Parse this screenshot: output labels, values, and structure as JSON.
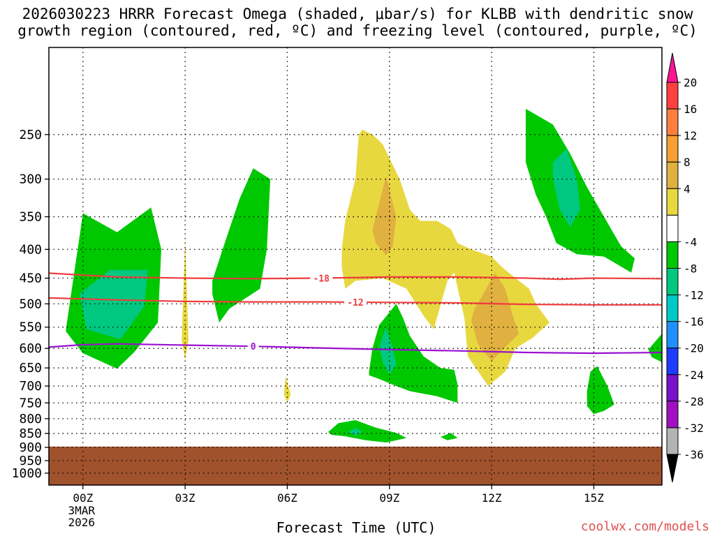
{
  "title": {
    "line1": "2026030223 HRRR Forecast Omega (shaded, μbar/s) for KLBB with dendritic snow",
    "line2": "growth region (contoured, red, ºC) and freezing level (contoured, purple, ºC)"
  },
  "xlabel": "Forecast Time (UTC)",
  "credit": "coolwx.com/models",
  "chart_data": {
    "type": "time-height cross-section (filled contour)",
    "x_unit": "forecast hours since 2026-03-03 00Z",
    "xlim": [
      -1.0,
      17.0
    ],
    "x_ticks": [
      {
        "hour": 0,
        "label": "00Z",
        "sublabels": [
          "3MAR",
          "2026"
        ]
      },
      {
        "hour": 3,
        "label": "03Z",
        "sublabels": []
      },
      {
        "hour": 6,
        "label": "06Z",
        "sublabels": []
      },
      {
        "hour": 9,
        "label": "09Z",
        "sublabels": []
      },
      {
        "hour": 12,
        "label": "12Z",
        "sublabels": []
      },
      {
        "hour": 15,
        "label": "15Z",
        "sublabels": []
      }
    ],
    "y_unit": "hPa",
    "ylim": [
      1050,
      175
    ],
    "y_ticks": [
      250,
      300,
      350,
      400,
      450,
      500,
      550,
      600,
      650,
      700,
      750,
      800,
      850,
      900,
      950,
      1000
    ],
    "ground_below_hPa": 897,
    "ground_color": "#a0522d",
    "colorbar": {
      "label_values": [
        20,
        16,
        12,
        8,
        4,
        -4,
        -8,
        -12,
        -16,
        -20,
        -24,
        -28,
        -32,
        -36
      ],
      "bands": [
        {
          "from": 20,
          "to": 24,
          "color": "#ff1493"
        },
        {
          "from": 16,
          "to": 20,
          "color": "#ff4040"
        },
        {
          "from": 12,
          "to": 16,
          "color": "#ff7f3f"
        },
        {
          "from": 8,
          "to": 12,
          "color": "#f5a030"
        },
        {
          "from": 4,
          "to": 8,
          "color": "#e0b040"
        },
        {
          "from": 0,
          "to": 4,
          "color": "#e8d840"
        },
        {
          "from": -4,
          "to": 0,
          "color": "#ffffff"
        },
        {
          "from": -8,
          "to": -4,
          "color": "#00c800"
        },
        {
          "from": -12,
          "to": -8,
          "color": "#00c880"
        },
        {
          "from": -16,
          "to": -12,
          "color": "#00c8c8"
        },
        {
          "from": -20,
          "to": -16,
          "color": "#1e90ff"
        },
        {
          "from": -24,
          "to": -20,
          "color": "#1e3cff"
        },
        {
          "from": -28,
          "to": -24,
          "color": "#7a10c8"
        },
        {
          "from": -32,
          "to": -28,
          "color": "#a010c0"
        },
        {
          "from": -36,
          "to": -32,
          "color": "#b4b4b4"
        },
        {
          "from": -40,
          "to": -36,
          "color": "#000000"
        }
      ]
    },
    "shaded_regions": [
      {
        "value_band": [
          -8,
          -4
        ],
        "color": "#00c800",
        "points": [
          [
            -0.5,
            555
          ],
          [
            0.0,
            345
          ],
          [
            1.0,
            373
          ],
          [
            2.0,
            337
          ],
          [
            2.3,
            400
          ],
          [
            2.2,
            540
          ],
          [
            1.5,
            610
          ],
          [
            1.0,
            652
          ],
          [
            0.0,
            612
          ],
          [
            -0.5,
            560
          ]
        ]
      },
      {
        "value_band": [
          -12,
          -8
        ],
        "color": "#00c880",
        "points": [
          [
            -0.1,
            480
          ],
          [
            0.8,
            435
          ],
          [
            1.9,
            435
          ],
          [
            1.8,
            505
          ],
          [
            1.1,
            578
          ],
          [
            0.1,
            555
          ]
        ]
      },
      {
        "value_band": [
          0,
          4
        ],
        "color": "#e8d840",
        "points": [
          [
            2.9,
            580
          ],
          [
            3.0,
            385
          ],
          [
            3.1,
            580
          ],
          [
            3.0,
            628
          ],
          [
            2.9,
            580
          ]
        ]
      },
      {
        "value_band": [
          -8,
          -4
        ],
        "color": "#00c800",
        "points": [
          [
            3.8,
            455
          ],
          [
            4.1,
            400
          ],
          [
            4.6,
            325
          ],
          [
            5.0,
            287
          ],
          [
            5.5,
            300
          ],
          [
            5.4,
            400
          ],
          [
            5.2,
            470
          ],
          [
            4.3,
            510
          ],
          [
            4.0,
            540
          ],
          [
            3.8,
            480
          ]
        ]
      },
      {
        "value_band": [
          0,
          4
        ],
        "color": "#e8d840",
        "points": [
          [
            5.9,
            725
          ],
          [
            5.95,
            672
          ],
          [
            6.1,
            725
          ],
          [
            6.0,
            750
          ],
          [
            5.9,
            725
          ]
        ]
      },
      {
        "value_band": [
          0,
          4
        ],
        "color": "#e8d840",
        "points": [
          [
            7.6,
            400
          ],
          [
            7.7,
            355
          ],
          [
            8.0,
            300
          ],
          [
            8.1,
            250
          ],
          [
            8.2,
            245
          ],
          [
            8.5,
            250
          ],
          [
            8.8,
            260
          ],
          [
            9.3,
            300
          ],
          [
            9.6,
            340
          ],
          [
            9.9,
            356
          ],
          [
            10.4,
            356
          ],
          [
            10.8,
            368
          ],
          [
            11.0,
            390
          ],
          [
            11.4,
            400
          ],
          [
            12.0,
            412
          ],
          [
            12.3,
            430
          ],
          [
            12.7,
            450
          ],
          [
            13.1,
            470
          ],
          [
            13.3,
            500
          ],
          [
            13.7,
            540
          ],
          [
            13.2,
            575
          ],
          [
            12.7,
            600
          ],
          [
            12.4,
            660
          ],
          [
            11.9,
            700
          ],
          [
            11.3,
            620
          ],
          [
            11.2,
            530
          ],
          [
            10.9,
            440
          ],
          [
            10.7,
            455
          ],
          [
            10.3,
            555
          ],
          [
            10.0,
            525
          ],
          [
            9.5,
            470
          ],
          [
            8.8,
            450
          ],
          [
            8.0,
            455
          ],
          [
            7.7,
            470
          ],
          [
            7.6,
            430
          ],
          [
            7.6,
            400
          ]
        ]
      },
      {
        "value_band": [
          4,
          8
        ],
        "color": "#e0b040",
        "points": [
          [
            8.6,
            350
          ],
          [
            8.9,
            296
          ],
          [
            9.2,
            350
          ],
          [
            9.1,
            395
          ],
          [
            8.9,
            410
          ],
          [
            8.6,
            390
          ],
          [
            8.5,
            370
          ]
        ]
      },
      {
        "value_band": [
          4,
          8
        ],
        "color": "#e0b040",
        "points": [
          [
            11.5,
            510
          ],
          [
            11.8,
            475
          ],
          [
            12.1,
            440
          ],
          [
            12.4,
            470
          ],
          [
            12.6,
            520
          ],
          [
            12.8,
            565
          ],
          [
            12.3,
            605
          ],
          [
            12.0,
            632
          ],
          [
            11.6,
            590
          ],
          [
            11.4,
            535
          ]
        ]
      },
      {
        "value_band": [
          -8,
          -4
        ],
        "color": "#00c800",
        "points": [
          [
            8.4,
            660
          ],
          [
            8.5,
            600
          ],
          [
            8.7,
            545
          ],
          [
            9.2,
            500
          ],
          [
            9.4,
            530
          ],
          [
            9.6,
            570
          ],
          [
            10.0,
            620
          ],
          [
            10.5,
            650
          ],
          [
            10.9,
            655
          ],
          [
            11.0,
            695
          ],
          [
            11.0,
            750
          ],
          [
            10.4,
            730
          ],
          [
            9.6,
            715
          ],
          [
            9.2,
            700
          ],
          [
            8.7,
            680
          ],
          [
            8.4,
            670
          ]
        ]
      },
      {
        "value_band": [
          -12,
          -8
        ],
        "color": "#00c880",
        "points": [
          [
            8.7,
            595
          ],
          [
            8.9,
            550
          ],
          [
            9.1,
            600
          ],
          [
            9.2,
            640
          ],
          [
            9.0,
            668
          ],
          [
            8.8,
            635
          ]
        ]
      },
      {
        "value_band": [
          -8,
          -4
        ],
        "color": "#00c800",
        "points": [
          [
            13.0,
            225
          ],
          [
            13.8,
            240
          ],
          [
            14.3,
            270
          ],
          [
            14.8,
            310
          ],
          [
            15.3,
            350
          ],
          [
            15.8,
            395
          ],
          [
            16.2,
            415
          ],
          [
            16.1,
            440
          ],
          [
            15.3,
            412
          ],
          [
            14.5,
            408
          ],
          [
            13.9,
            390
          ],
          [
            13.6,
            350
          ],
          [
            13.3,
            320
          ],
          [
            13.0,
            280
          ],
          [
            13.0,
            240
          ]
        ]
      },
      {
        "value_band": [
          -12,
          -8
        ],
        "color": "#00c880",
        "points": [
          [
            13.8,
            280
          ],
          [
            14.2,
            265
          ],
          [
            14.5,
            300
          ],
          [
            14.6,
            340
          ],
          [
            14.3,
            365
          ],
          [
            14.0,
            340
          ],
          [
            13.8,
            300
          ]
        ]
      },
      {
        "value_band": [
          -8,
          -4
        ],
        "color": "#00c800",
        "points": [
          [
            16.6,
            603
          ],
          [
            17.0,
            565
          ],
          [
            17.0,
            635
          ],
          [
            16.7,
            622
          ]
        ]
      },
      {
        "value_band": [
          -8,
          -4
        ],
        "color": "#00c800",
        "points": [
          [
            14.8,
            715
          ],
          [
            14.9,
            660
          ],
          [
            15.1,
            645
          ],
          [
            15.4,
            700
          ],
          [
            15.6,
            755
          ],
          [
            15.3,
            775
          ],
          [
            15.0,
            785
          ],
          [
            14.8,
            760
          ]
        ]
      },
      {
        "value_band": [
          -8,
          -4
        ],
        "color": "#00c800",
        "points": [
          [
            7.2,
            845
          ],
          [
            7.5,
            815
          ],
          [
            8.0,
            805
          ],
          [
            8.6,
            830
          ],
          [
            9.2,
            848
          ],
          [
            9.5,
            866
          ],
          [
            8.9,
            882
          ],
          [
            8.3,
            874
          ],
          [
            7.7,
            860
          ],
          [
            7.3,
            855
          ]
        ]
      },
      {
        "value_band": [
          -12,
          -8
        ],
        "color": "#00c880",
        "points": [
          [
            7.8,
            845
          ],
          [
            8.0,
            830
          ],
          [
            8.2,
            845
          ],
          [
            8.0,
            858
          ]
        ]
      },
      {
        "value_band": [
          -8,
          -4
        ],
        "color": "#00c800",
        "points": [
          [
            10.5,
            862
          ],
          [
            10.8,
            848
          ],
          [
            11.0,
            866
          ],
          [
            10.7,
            874
          ]
        ]
      }
    ],
    "contours": [
      {
        "label": "-18",
        "label_at_hour": 7.0,
        "color": "#f03c3c",
        "points": [
          [
            -1.0,
            441
          ],
          [
            1.0,
            448
          ],
          [
            3.0,
            450
          ],
          [
            5.0,
            451
          ],
          [
            7.0,
            450
          ],
          [
            9.0,
            448
          ],
          [
            11.0,
            448
          ],
          [
            13.0,
            450
          ],
          [
            14.0,
            452
          ],
          [
            15.0,
            450
          ],
          [
            17.0,
            451
          ]
        ]
      },
      {
        "label": "-12",
        "label_at_hour": 8.0,
        "color": "#f03c3c",
        "points": [
          [
            -1.0,
            488
          ],
          [
            1.0,
            492
          ],
          [
            3.0,
            495
          ],
          [
            5.0,
            496
          ],
          [
            7.0,
            496
          ],
          [
            9.0,
            497
          ],
          [
            11.0,
            498
          ],
          [
            13.0,
            501
          ],
          [
            15.0,
            502
          ],
          [
            17.0,
            502
          ]
        ]
      },
      {
        "label": "0",
        "label_at_hour": 5.0,
        "color": "#9a10d0",
        "points": [
          [
            -1.0,
            597
          ],
          [
            0.0,
            591
          ],
          [
            1.0,
            589
          ],
          [
            3.0,
            592
          ],
          [
            5.0,
            595
          ],
          [
            7.0,
            599
          ],
          [
            9.0,
            603
          ],
          [
            11.0,
            606
          ],
          [
            13.0,
            610
          ],
          [
            15.0,
            612
          ],
          [
            17.0,
            610
          ]
        ]
      }
    ]
  }
}
